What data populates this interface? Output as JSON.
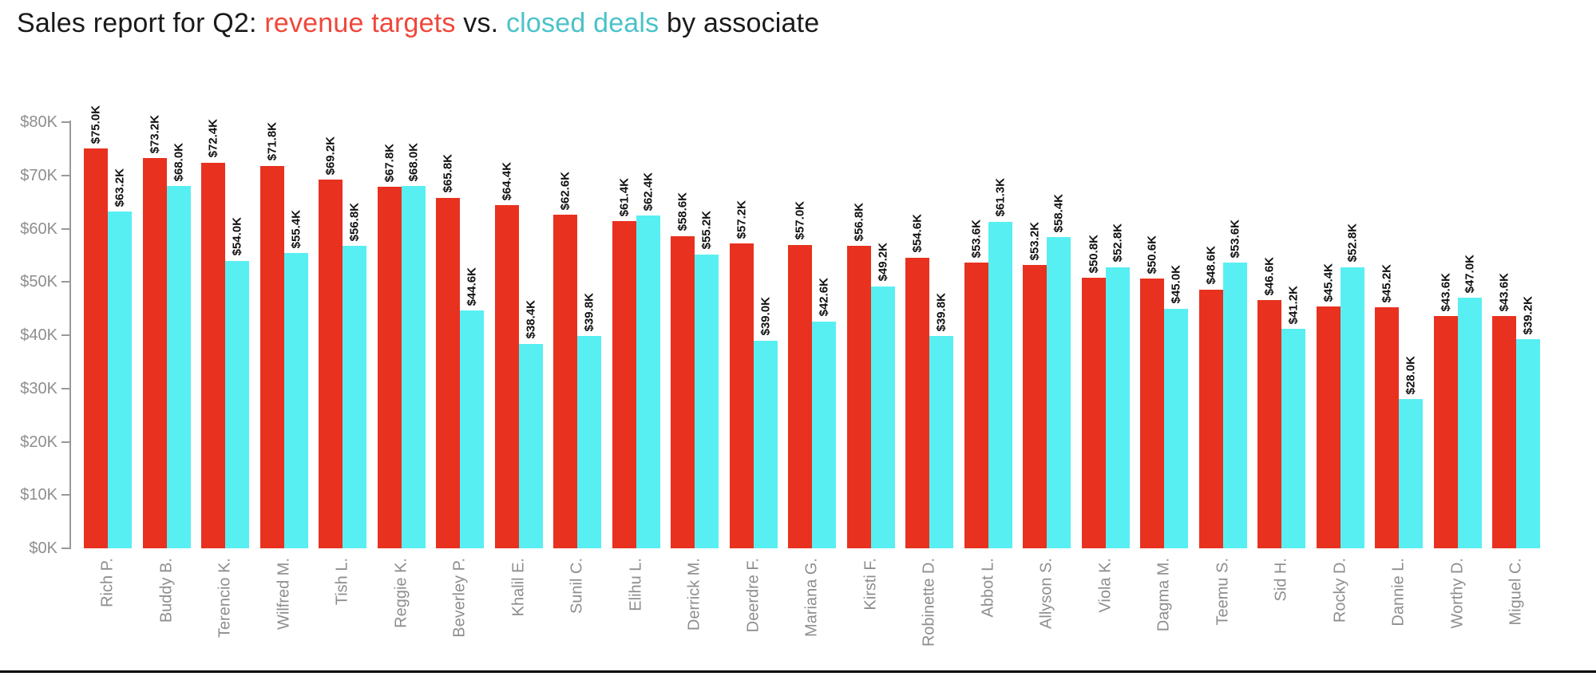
{
  "title": {
    "full_text": "Sales report for Q2: revenue targets vs. closed deals by associate",
    "segments": [
      {
        "text": "Sales report for Q2: ",
        "color": "#1a1a1a"
      },
      {
        "text": "revenue targets",
        "color": "#f0473a"
      },
      {
        "text": " vs. ",
        "color": "#1a1a1a"
      },
      {
        "text": "closed deals",
        "color": "#4bc2c9"
      },
      {
        "text": " by associate",
        "color": "#1a1a1a"
      }
    ]
  },
  "y_axis": {
    "tick_labels": [
      "$0K",
      "$10K",
      "$20K",
      "$30K",
      "$40K",
      "$50K",
      "$60K",
      "$70K",
      "$80K"
    ],
    "min": 0,
    "max": 80,
    "step": 10
  },
  "chart_data": {
    "type": "bar",
    "title": "Sales report for Q2: revenue targets vs. closed deals by associate",
    "unit": "USD thousands",
    "xlabel": "",
    "ylabel": "",
    "ylim": [
      0,
      80
    ],
    "grid": false,
    "legend_position": "in-title",
    "value_labels_rotated": true,
    "categories": [
      "Rich P.",
      "Buddy B.",
      "Terencio K.",
      "Wilfred M.",
      "Tish L.",
      "Reggie K.",
      "Beverley P.",
      "Khalil E.",
      "Sunil C.",
      "Elihu L.",
      "Derrick M.",
      "Deerdre F.",
      "Mariana G.",
      "Kirsti F.",
      "Robinette D.",
      "Abbot L.",
      "Allyson S.",
      "Viola K.",
      "Dagma M.",
      "Teemu S.",
      "Sid H.",
      "Rocky D.",
      "Dannie L.",
      "Worthy D.",
      "Miguel C."
    ],
    "series": [
      {
        "name": "revenue targets",
        "color": "#e8311f",
        "values": [
          75.0,
          73.2,
          72.4,
          71.8,
          69.2,
          67.8,
          65.8,
          64.4,
          62.6,
          61.4,
          58.6,
          57.2,
          57.0,
          56.8,
          54.6,
          53.6,
          53.2,
          50.8,
          50.6,
          48.6,
          46.6,
          45.4,
          45.2,
          43.6,
          43.6
        ],
        "labels": [
          "$75.0K",
          "$73.2K",
          "$72.4K",
          "$71.8K",
          "$69.2K",
          "$67.8K",
          "$65.8K",
          "$64.4K",
          "$62.6K",
          "$61.4K",
          "$58.6K",
          "$57.2K",
          "$57.0K",
          "$56.8K",
          "$54.6K",
          "$53.6K",
          "$53.2K",
          "$50.8K",
          "$50.6K",
          "$48.6K",
          "$46.6K",
          "$45.4K",
          "$45.2K",
          "$43.6K",
          "$43.6K"
        ]
      },
      {
        "name": "closed deals",
        "color": "#58eff3",
        "values": [
          63.2,
          68.0,
          54.0,
          55.4,
          56.8,
          68.0,
          44.6,
          38.4,
          39.8,
          62.4,
          55.2,
          39.0,
          42.6,
          49.2,
          39.8,
          61.3,
          58.4,
          52.8,
          45.0,
          53.6,
          41.2,
          52.8,
          28.0,
          47.0,
          39.2
        ],
        "labels": [
          "$63.2K",
          "$68.0K",
          "$54.0K",
          "$55.4K",
          "$56.8K",
          "$68.0K",
          "$44.6K",
          "$38.4K",
          "$39.8K",
          "$62.4K",
          "$55.2K",
          "$39.0K",
          "$42.6K",
          "$49.2K",
          "$39.8K",
          "$61.3K",
          "$58.4K",
          "$52.8K",
          "$45.0K",
          "$53.6K",
          "$41.2K",
          "$52.8K",
          "$28.0K",
          "$47.0K",
          "$39.2K"
        ]
      }
    ]
  },
  "colors": {
    "bar_red": "#e8311f",
    "bar_cyan": "#58eff3",
    "title_red": "#f0473a",
    "title_teal": "#4bc2c9",
    "axis_gray": "#999999",
    "label_gray": "#8e8e8e",
    "value_label": "#111111"
  }
}
